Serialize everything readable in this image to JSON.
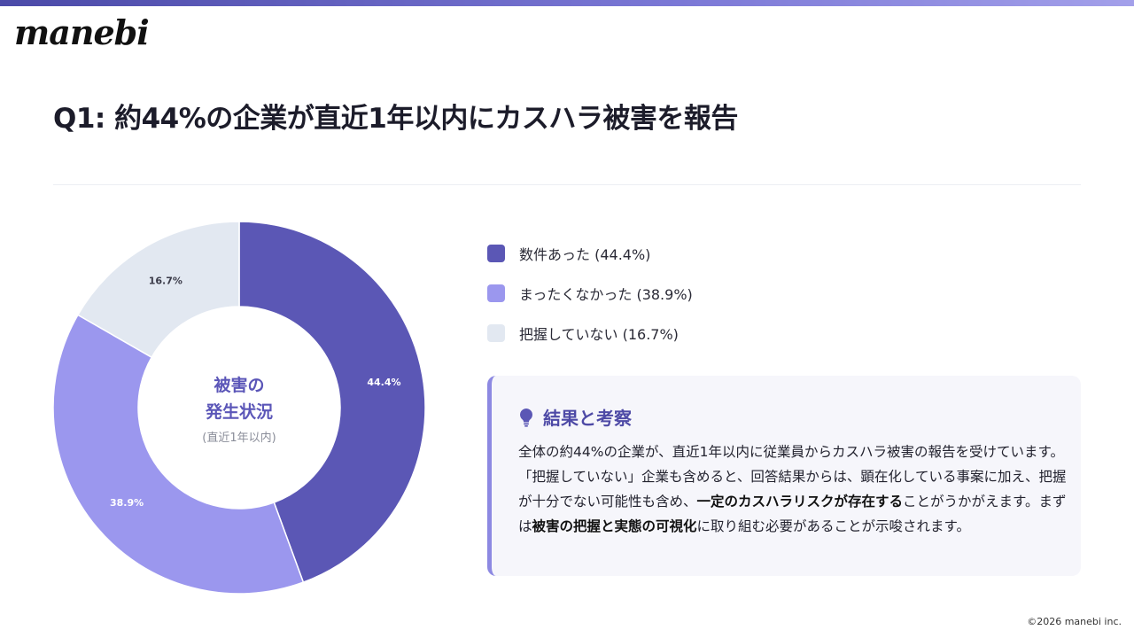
{
  "brand": {
    "logo_text": "manebi"
  },
  "title": "Q1: 約44%の企業が直近1年以内にカスハラ被害を報告",
  "chart_data": {
    "type": "pie",
    "donut": true,
    "categories": [
      "数件あった",
      "まったくなかった",
      "把握していない"
    ],
    "values": [
      44.4,
      38.9,
      16.7
    ],
    "data_labels": [
      "44.4%",
      "38.9%",
      "16.7%"
    ],
    "colors": [
      "#5b57b5",
      "#9b97ee",
      "#e2e8f1"
    ],
    "label_colors": [
      "#ffffff",
      "#ffffff",
      "#3a3a48"
    ],
    "center_title_line1": "被害の",
    "center_title_line2": "発生状況",
    "center_subtitle": "(直近1年以内)",
    "legend_position": "right"
  },
  "legend": [
    {
      "label": "数件あった (44.4%)",
      "color": "#5b57b5"
    },
    {
      "label": "まったくなかった (38.9%)",
      "color": "#9b97ee"
    },
    {
      "label": "把握していない (16.7%)",
      "color": "#e2e8f1"
    }
  ],
  "insight": {
    "icon": "lightbulb-icon",
    "title": "結果と考察",
    "body_part1": "全体の約44%の企業が、直近1年以内に従業員からカスハラ被害の報告を受けています。「把握していない」企業も含めると、回答結果からは、顕在化している事案に加え、把握が十分でない可能性も含め、",
    "body_bold1": "一定のカスハラリスクが存在する",
    "body_part2": "ことがうかがえます。まずは",
    "body_bold2": "被害の把握と実態の可視化",
    "body_part3": "に取り組む必要があることが示唆されます。"
  },
  "footer": {
    "copyright": "©2026 manebi inc."
  }
}
